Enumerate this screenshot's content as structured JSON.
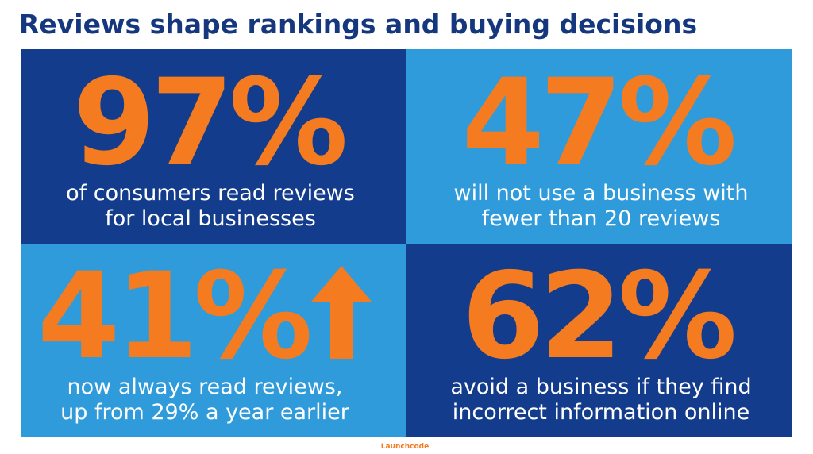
{
  "header": {
    "title": "Reviews shape rankings and buying decisions"
  },
  "stats": [
    {
      "figure": "97%",
      "lines": [
        "of consumers read reviews",
        "for local businesses"
      ]
    },
    {
      "figure": "47%",
      "lines": [
        "will not use a business with",
        "fewer than 20 reviews"
      ]
    },
    {
      "figure": "41%",
      "lines": [
        "now always read reviews,",
        "up from 29% a year earlier"
      ]
    },
    {
      "figure": "62%",
      "lines": [
        "avoid a business if they find",
        "incorrect information online"
      ]
    }
  ],
  "footer": {
    "brand": "Launchcode"
  }
}
